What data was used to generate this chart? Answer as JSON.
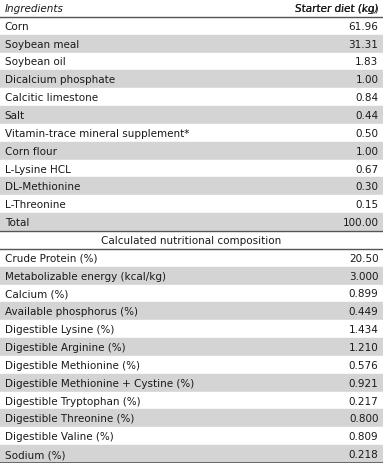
{
  "col_headers": [
    "Ingredients",
    "Starter diet (kg)"
  ],
  "ingredients_rows": [
    [
      "Corn",
      "61.96"
    ],
    [
      "Soybean meal",
      "31.31"
    ],
    [
      "Soybean oil",
      "1.83"
    ],
    [
      "Dicalcium phosphate",
      "1.00"
    ],
    [
      "Calcitic limestone",
      "0.84"
    ],
    [
      "Salt",
      "0.44"
    ],
    [
      "Vitamin-trace mineral supplement*",
      "0.50"
    ],
    [
      "Corn flour",
      "1.00"
    ],
    [
      "L-Lysine HCL",
      "0.67"
    ],
    [
      "DL-Methionine",
      "0.30"
    ],
    [
      "L-Threonine",
      "0.15"
    ],
    [
      "Total",
      "100.00"
    ]
  ],
  "section_header": "Calculated nutritional composition",
  "nutrition_rows": [
    [
      "Crude Protein (%)",
      "20.50"
    ],
    [
      "Metabolizable energy (kcal/kg)",
      "3.000"
    ],
    [
      "Calcium (%)",
      "0.899"
    ],
    [
      "Available phosphorus (%)",
      "0.449"
    ],
    [
      "Digestible Lysine (%)",
      "1.434"
    ],
    [
      "Digestible Arginine (%)",
      "1.210"
    ],
    [
      "Digestible Methionine (%)",
      "0.576"
    ],
    [
      "Digestible Methionine + Cystine (%)",
      "0.921"
    ],
    [
      "Digestible Tryptophan (%)",
      "0.217"
    ],
    [
      "Digestible Threonine (%)",
      "0.800"
    ],
    [
      "Digestible Valine (%)",
      "0.809"
    ],
    [
      "Sodium (%)",
      "0.218"
    ]
  ],
  "header_bg": "#ffffff",
  "row_bg_even": "#d4d4d4",
  "row_bg_odd": "#ffffff",
  "section_header_bg": "#ffffff",
  "font_size": 7.5,
  "header_font_size": 7.5,
  "text_color": "#1a1a1a",
  "border_color": "#555555",
  "fig_bg": "#ffffff"
}
